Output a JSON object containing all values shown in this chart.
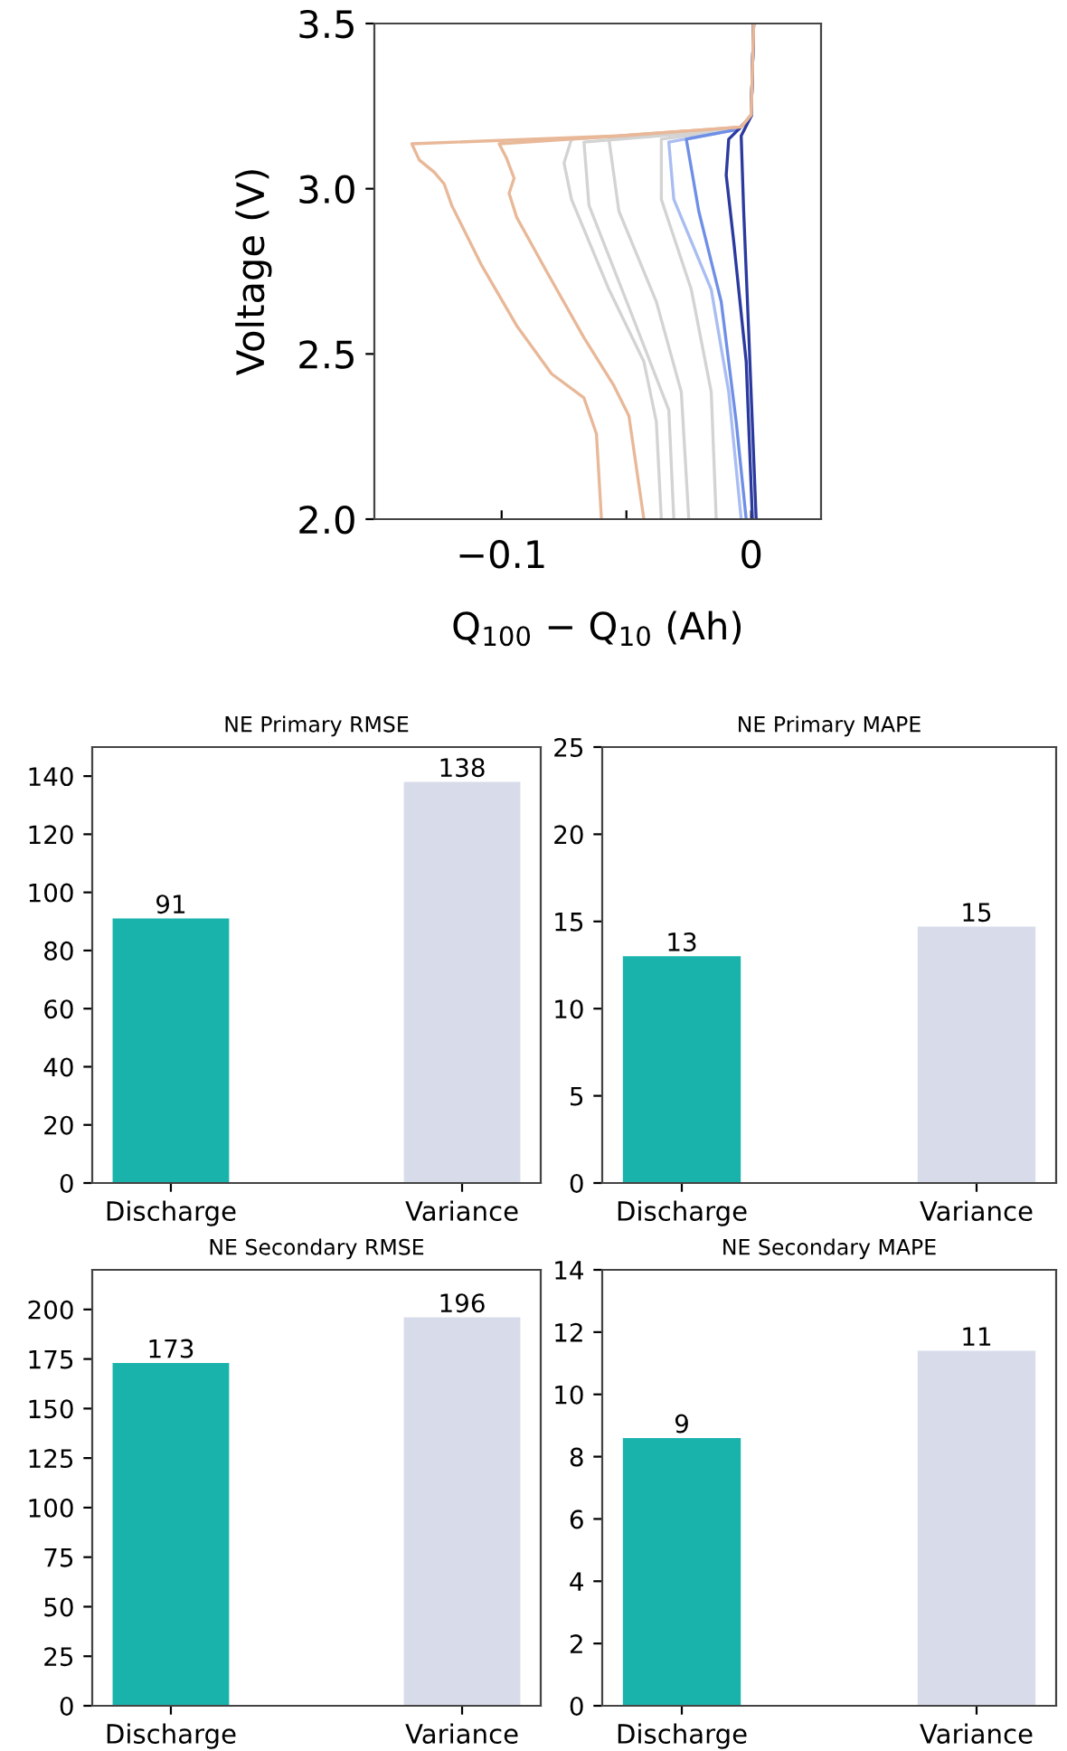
{
  "chart_data": [
    {
      "type": "line",
      "xlabel": "Q$_{100}$ − Q$_{10}$ (Ah)",
      "ylabel": "Voltage (V)",
      "xlim": [
        -0.151,
        0.028
      ],
      "ylim": [
        2.0,
        3.5
      ],
      "xticks": [
        {
          "value": -0.1,
          "label": "−0.1"
        },
        {
          "value": -0.05,
          "label": null
        },
        {
          "value": 0,
          "label": "0"
        }
      ],
      "yticks": [
        {
          "value": 2,
          "label": "2.0"
        },
        2.5,
        {
          "value": 3,
          "label": "3.0"
        },
        3.5
      ],
      "series": [
        {
          "color": "#d3d3d3",
          "x": [
            0.001,
            0.0,
            -0.005,
            -0.072,
            -0.075,
            -0.072,
            -0.057,
            -0.043,
            -0.038,
            -0.036
          ],
          "values": [
            3.5,
            3.22,
            3.18,
            3.15,
            3.078,
            2.968,
            2.695,
            2.477,
            2.295,
            2.0
          ]
        },
        {
          "color": "#d3d3d3",
          "x": [
            0.001,
            0.0,
            -0.005,
            -0.067,
            -0.065,
            -0.048,
            -0.033,
            -0.031
          ],
          "values": [
            3.5,
            3.22,
            3.18,
            3.141,
            2.95,
            2.622,
            2.33,
            2.0
          ]
        },
        {
          "color": "#d3d3d3",
          "x": [
            0.001,
            0.0,
            -0.005,
            -0.057,
            -0.053,
            -0.038,
            -0.028,
            -0.025
          ],
          "values": [
            3.5,
            3.22,
            3.18,
            3.15,
            2.932,
            2.658,
            2.385,
            2.0
          ]
        },
        {
          "color": "#d3d3d3",
          "x": [
            0.001,
            0.0,
            -0.005,
            -0.036,
            -0.036,
            -0.024,
            -0.016,
            -0.014
          ],
          "values": [
            3.5,
            3.22,
            3.18,
            3.15,
            2.968,
            2.695,
            2.385,
            2.0
          ]
        },
        {
          "color": "#a9bdf2",
          "x": [
            0.001,
            0.0,
            -0.005,
            -0.033,
            -0.031,
            -0.016,
            -0.009,
            -0.004
          ],
          "values": [
            3.5,
            3.22,
            3.18,
            3.141,
            2.968,
            2.695,
            2.385,
            2.0
          ]
        },
        {
          "color": "#6f8fe6",
          "x": [
            0.001,
            0.0,
            -0.005,
            -0.026,
            -0.021,
            -0.012,
            -0.006,
            -0.002
          ],
          "values": [
            3.5,
            3.22,
            3.18,
            3.15,
            2.932,
            2.658,
            2.295,
            2.0
          ]
        },
        {
          "color": "#2b3a9e",
          "x": [
            0.001,
            0.0,
            -0.005,
            -0.009,
            -0.01,
            -0.007,
            -0.002,
            0.0005
          ],
          "values": [
            3.5,
            3.22,
            3.18,
            3.15,
            3.041,
            2.841,
            2.477,
            2.0
          ]
        },
        {
          "color": "#2b3a9e",
          "x": [
            0.001,
            0.0,
            -0.004,
            -0.003,
            -0.001,
            0.002
          ],
          "values": [
            3.5,
            3.22,
            3.16,
            2.932,
            2.568,
            2.0
          ]
        },
        {
          "color": "#e8b898",
          "x": [
            0.001,
            0.0,
            -0.004,
            -0.053,
            -0.136,
            -0.133,
            -0.127,
            -0.123,
            -0.12,
            -0.108,
            -0.094,
            -0.08,
            -0.067,
            -0.062,
            -0.06
          ],
          "values": [
            3.5,
            3.224,
            3.187,
            3.16,
            3.136,
            3.087,
            3.05,
            3.014,
            2.95,
            2.768,
            2.586,
            2.44,
            2.367,
            2.258,
            2.0
          ]
        },
        {
          "color": "#e8b898",
          "x": [
            0.001,
            0.0,
            -0.004,
            -0.053,
            -0.101,
            -0.098,
            -0.095,
            -0.097,
            -0.094,
            -0.082,
            -0.067,
            -0.055,
            -0.049,
            -0.043
          ],
          "values": [
            3.5,
            3.224,
            3.187,
            3.16,
            3.136,
            3.092,
            3.032,
            2.986,
            2.914,
            2.75,
            2.549,
            2.404,
            2.313,
            2.0
          ]
        }
      ]
    },
    {
      "type": "bar",
      "title": "NE Primary RMSE",
      "categories": [
        "Discharge",
        "Variance"
      ],
      "values": [
        91,
        138
      ],
      "value_labels": [
        "91",
        "138"
      ],
      "colors": [
        "#1ab3ac",
        "#d8dcea"
      ],
      "ylim": [
        0,
        150
      ],
      "yticks": [
        0,
        20,
        40,
        60,
        80,
        100,
        120,
        140
      ]
    },
    {
      "type": "bar",
      "title": "NE Primary MAPE",
      "categories": [
        "Discharge",
        "Variance"
      ],
      "values": [
        13.0,
        14.7
      ],
      "value_labels": [
        "13",
        "15"
      ],
      "colors": [
        "#1ab3ac",
        "#d8dcea"
      ],
      "ylim": [
        0,
        25
      ],
      "yticks": [
        0,
        5,
        10,
        15,
        20,
        25
      ]
    },
    {
      "type": "bar",
      "title": "NE Secondary RMSE",
      "categories": [
        "Discharge",
        "Variance"
      ],
      "values": [
        173,
        196
      ],
      "value_labels": [
        "173",
        "196"
      ],
      "colors": [
        "#1ab3ac",
        "#d8dcea"
      ],
      "ylim": [
        0,
        220
      ],
      "yticks": [
        0,
        25,
        50,
        75,
        100,
        125,
        150,
        175,
        200
      ]
    },
    {
      "type": "bar",
      "title": "NE Secondary MAPE",
      "categories": [
        "Discharge",
        "Variance"
      ],
      "values": [
        8.6,
        11.4
      ],
      "value_labels": [
        "9",
        "11"
      ],
      "colors": [
        "#1ab3ac",
        "#d8dcea"
      ],
      "ylim": [
        0,
        14
      ],
      "yticks": [
        0,
        2,
        4,
        6,
        8,
        10,
        12,
        14
      ]
    }
  ]
}
